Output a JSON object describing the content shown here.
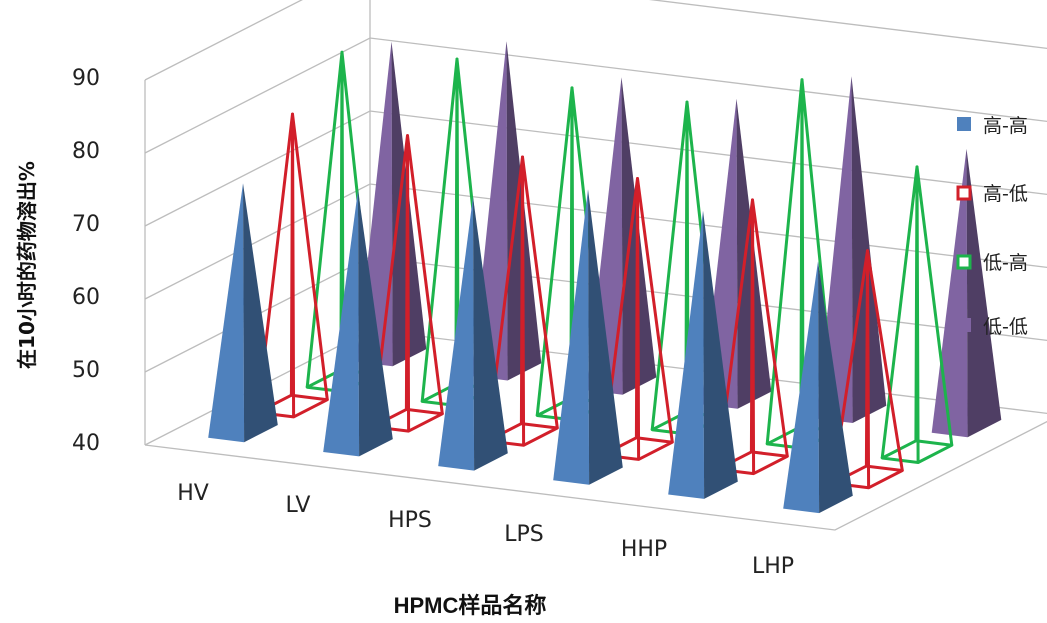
{
  "chart_data": {
    "type": "bar",
    "subtype": "3d-pyramid",
    "title": "",
    "xlabel": "HPMC样品名称",
    "ylabel": "在10小时的药物溶出%",
    "ylim": [
      40,
      90
    ],
    "yticks": [
      "40",
      "50",
      "60",
      "70",
      "80",
      "90"
    ],
    "categories": [
      "HV",
      "LV",
      "HPS",
      "LPS",
      "HHP",
      "LHP"
    ],
    "grid": true,
    "legend_position": "right",
    "series": [
      {
        "name": "高-高",
        "color": "#4f81bd",
        "style": "solid",
        "values": [
          74,
          75,
          76,
          79,
          78,
          73
        ]
      },
      {
        "name": "高-低",
        "color": "#d21f2a",
        "style": "outline",
        "values": [
          80,
          79,
          78,
          77,
          76,
          71
        ]
      },
      {
        "name": "低-高",
        "color": "#1db44c",
        "style": "outline",
        "values": [
          85,
          86,
          84,
          84,
          89,
          79
        ]
      },
      {
        "name": "低-低",
        "color": "#8064a2",
        "style": "solid",
        "values": [
          83,
          85,
          82,
          81,
          86,
          78
        ]
      }
    ]
  }
}
